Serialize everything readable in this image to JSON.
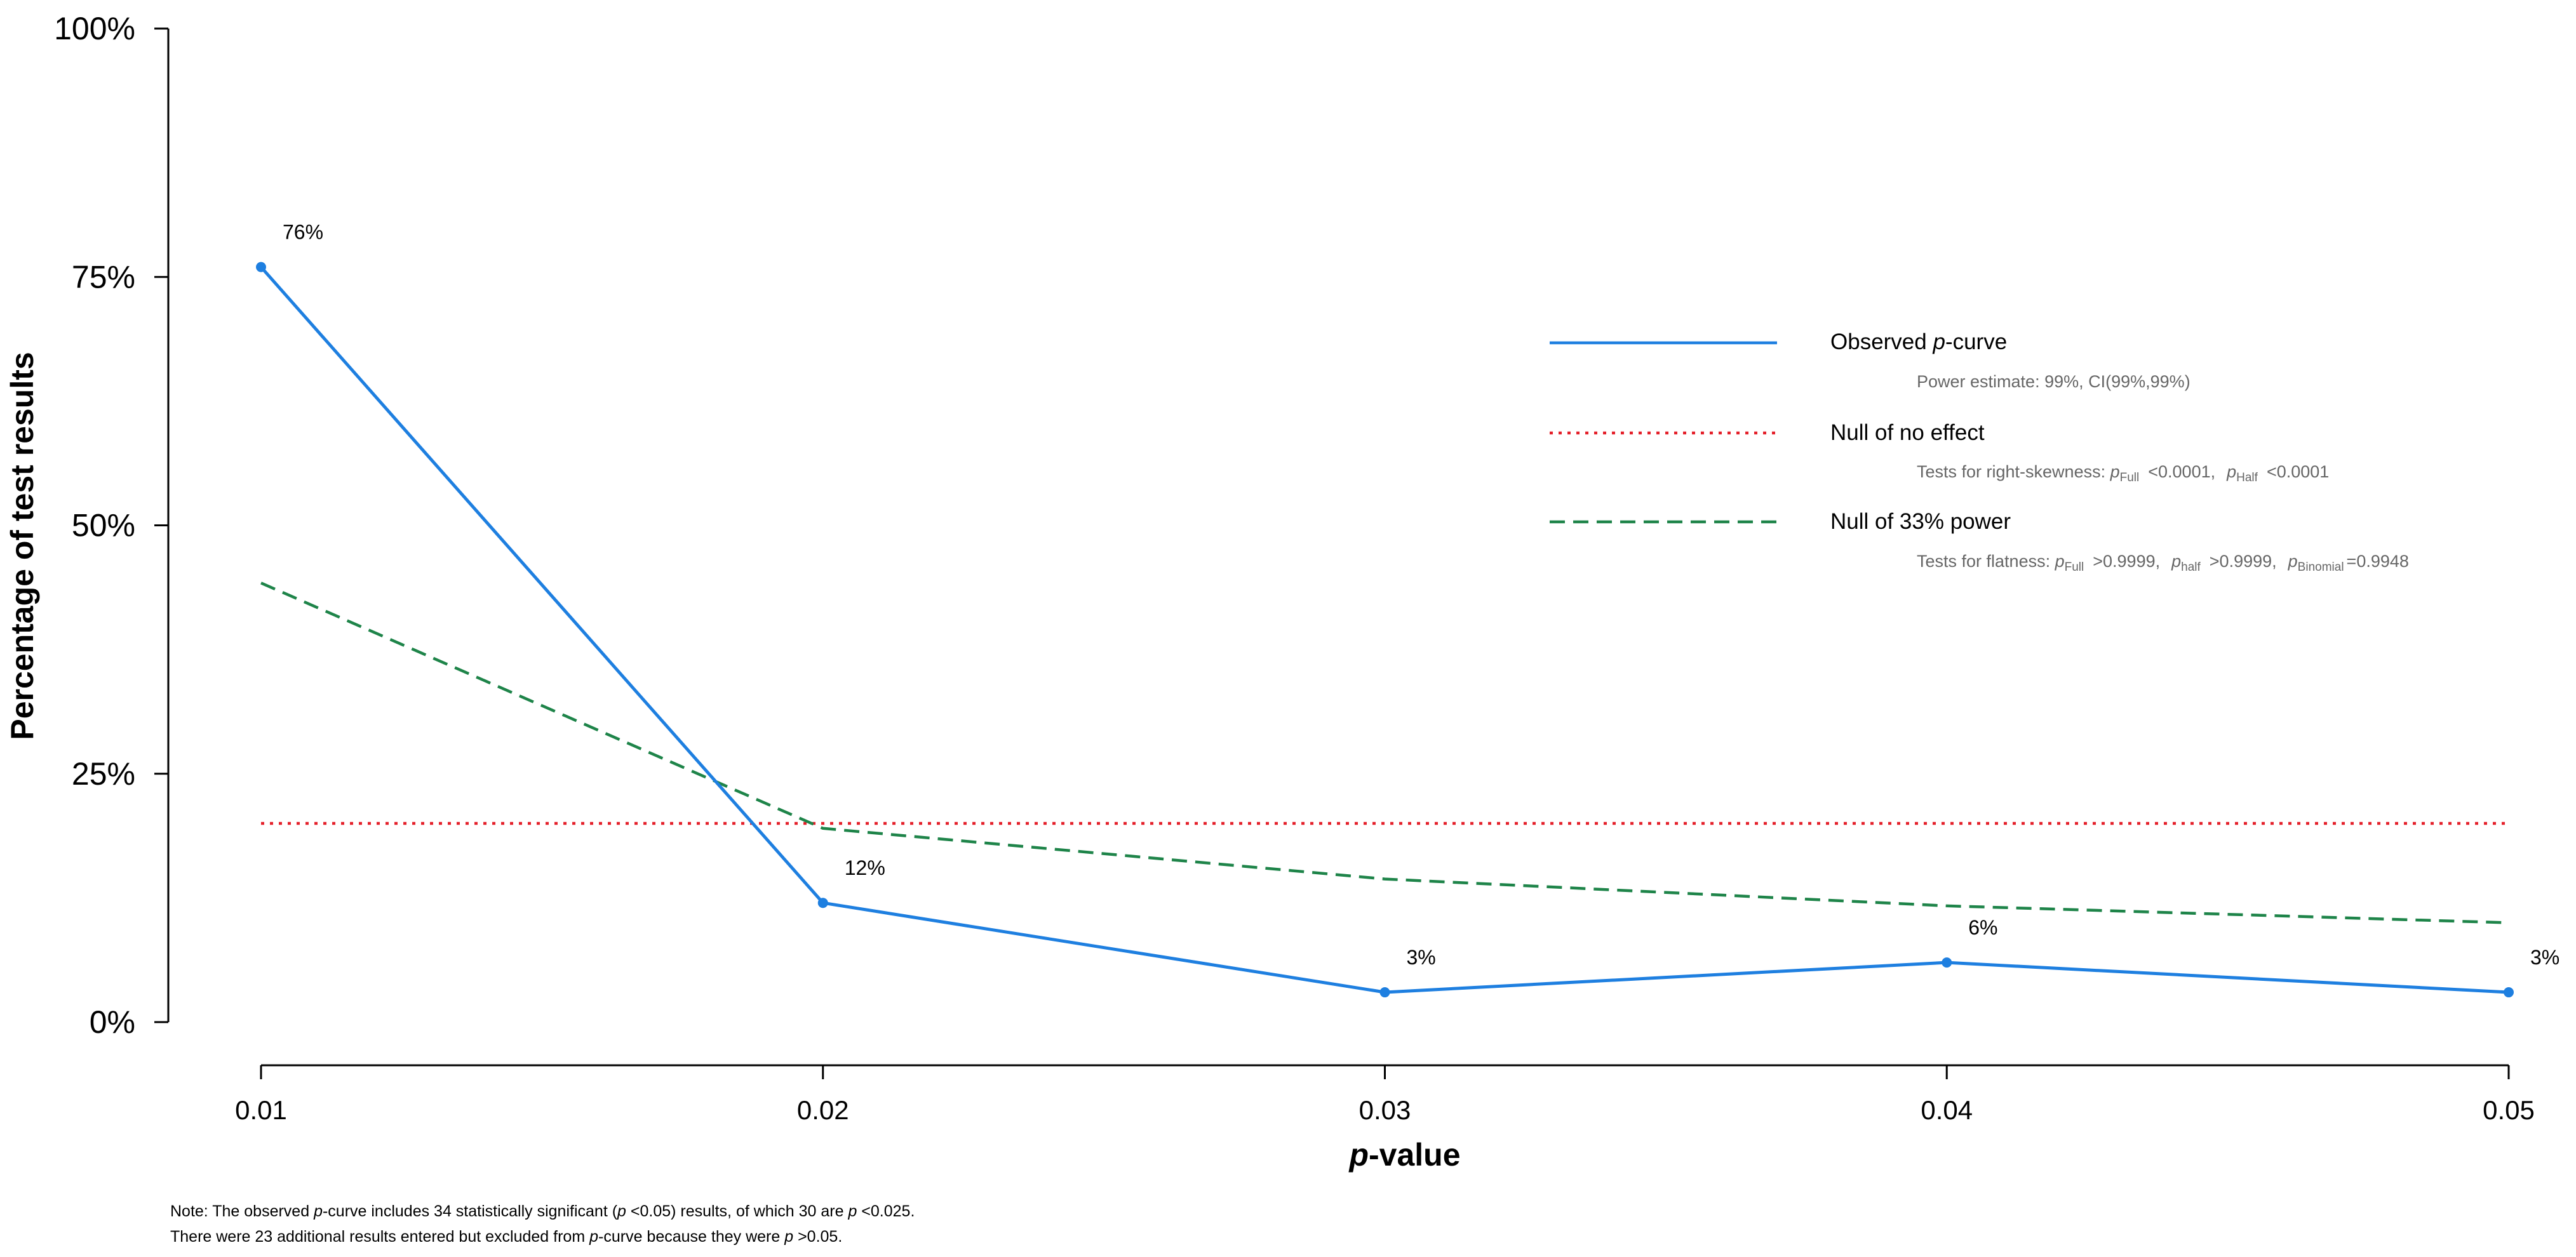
{
  "chart_data": {
    "type": "line",
    "x": [
      0.01,
      0.02,
      0.03,
      0.04,
      0.05
    ],
    "xtick_labels": [
      "0.01",
      "0.02",
      "0.03",
      "0.04",
      "0.05"
    ],
    "xlim": [
      0.01,
      0.05
    ],
    "ylim": [
      0,
      100
    ],
    "yticks": [
      0,
      25,
      50,
      75,
      100
    ],
    "ytick_labels": [
      "0%",
      "25%",
      "50%",
      "75%",
      "100%"
    ],
    "xlabel": {
      "italic": "p",
      "rest": "-value"
    },
    "ylabel": "Percentage of test results",
    "grid": false,
    "legend_position": "top-right",
    "series": [
      {
        "name": "Observed p-curve",
        "color": "#1E7FE0",
        "style": "solid",
        "values": [
          76,
          12,
          3,
          6,
          3
        ],
        "point_labels": [
          "76%",
          "12%",
          "3%",
          "6%",
          "3%"
        ]
      },
      {
        "name": "Null of no effect",
        "color": "#E4202A",
        "style": "dotted",
        "values": [
          20,
          20,
          20,
          20,
          20
        ]
      },
      {
        "name": "Null of 33% power",
        "color": "#1E8449",
        "style": "dashed",
        "values": [
          44.2,
          19.5,
          14.4,
          11.7,
          10.0
        ]
      }
    ],
    "legend": [
      {
        "label_main_pre": "Observed ",
        "label_main_italic": "p",
        "label_main_post": "-curve",
        "sub": "Power estimate: 99%, CI(99%,99%)"
      },
      {
        "label_main": "Null of no effect",
        "sub_pre": "Tests for right-skewness: ",
        "sub_p": "p",
        "sub_sub1": "Full",
        "sub_val1": "<0.0001,",
        "sub_sub2": "Half",
        "sub_val2": "<0.0001"
      },
      {
        "label_main": "Null of 33% power",
        "sub_pre": "Tests for flatness: ",
        "sub_p": "p",
        "sub_sub1": "Full",
        "sub_val1": ">0.9999,",
        "sub_sub2": "half",
        "sub_val2": ">0.9999,",
        "sub_sub3": "Binomial",
        "sub_val3": "=0.9948"
      }
    ]
  },
  "notes": {
    "line1": {
      "a": "Note: The observed ",
      "p1": "p",
      "b": "-curve includes 34 statistically significant (",
      "p2": "p",
      "c": " <0.05) results, of which 30 are ",
      "p3": "p",
      "d": " <0.025."
    },
    "line2": {
      "a": "There were 23 additional results entered but excluded from ",
      "p1": "p",
      "b": "-curve because they were ",
      "p2": "p",
      "c": " >0.05."
    }
  }
}
